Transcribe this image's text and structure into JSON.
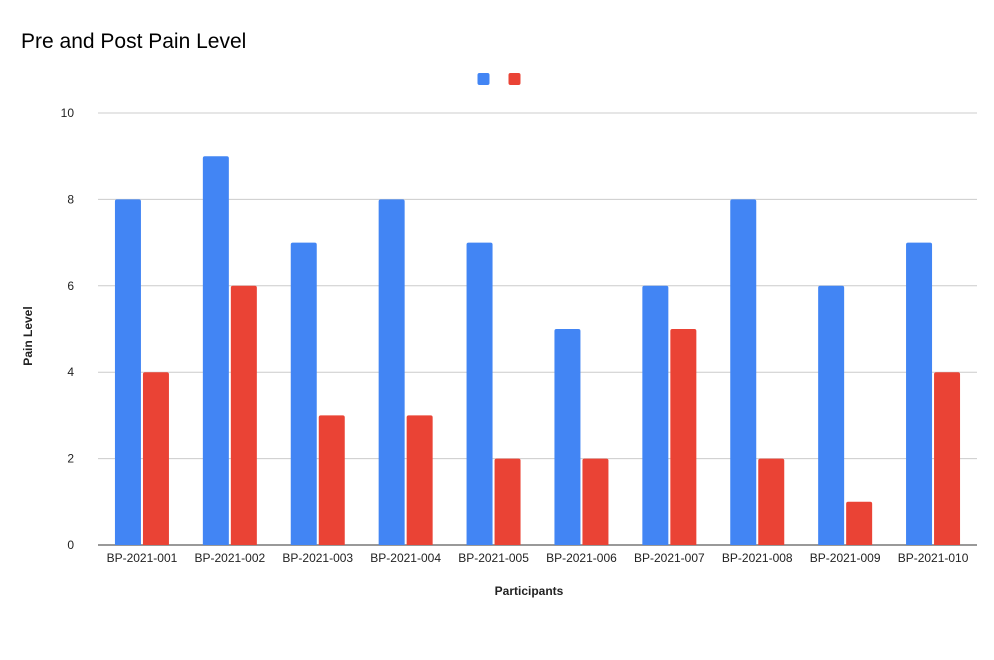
{
  "chart_data": {
    "type": "bar",
    "title": "Pre and Post Pain Level",
    "xlabel": "Participants",
    "ylabel": "Pain Level",
    "ylim": [
      0,
      10
    ],
    "yticks": [
      0,
      2,
      4,
      6,
      8,
      10
    ],
    "grid": true,
    "legend": "top-center",
    "categories": [
      "BP-2021-001",
      "BP-2021-002",
      "BP-2021-003",
      "BP-2021-004",
      "BP-2021-005",
      "BP-2021-006",
      "BP-2021-007",
      "BP-2021-008",
      "BP-2021-009",
      "BP-2021-010"
    ],
    "series": [
      {
        "color": "#4285f4",
        "values": [
          8,
          9,
          7,
          8,
          7,
          5,
          6,
          8,
          6,
          7
        ]
      },
      {
        "color": "#ea4335",
        "values": [
          4,
          6,
          3,
          3,
          2,
          2,
          5,
          2,
          1,
          4
        ]
      }
    ]
  }
}
